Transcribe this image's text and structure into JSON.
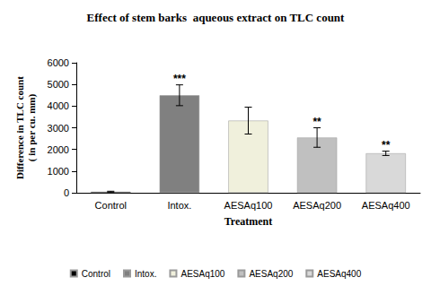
{
  "chart_data": {
    "type": "bar",
    "title": "Effect of stem barks  aqueous extract on TLC count",
    "x_label": "Treatment",
    "y_label": "Difference in TLC count\n( in per cu. mm)",
    "categories": [
      "Control",
      "Intox.",
      "AESAq100",
      "AESAq200",
      "AESAq400"
    ],
    "values": [
      50,
      4500,
      3330,
      2550,
      1820
    ],
    "errors": [
      20,
      480,
      620,
      450,
      100
    ],
    "annotations": [
      null,
      "***",
      null,
      "**",
      "**"
    ],
    "colors": [
      "#000000",
      "#808080",
      "#f0f0dc",
      "#c0c0c0",
      "#d9d9d9"
    ],
    "ylim": [
      0,
      6000
    ],
    "yticks": [
      0,
      1000,
      2000,
      3000,
      4000,
      5000,
      6000
    ],
    "grid": false,
    "legend": "bottom"
  }
}
